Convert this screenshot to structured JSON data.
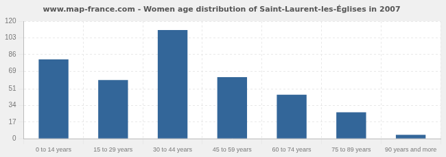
{
  "chart_data": {
    "type": "bar",
    "title": "www.map-france.com - Women age distribution of Saint-Laurent-les-Églises in 2007",
    "categories": [
      "0 to 14 years",
      "15 to 29 years",
      "30 to 44 years",
      "45 to 59 years",
      "60 to 74 years",
      "75 to 89 years",
      "90 years and more"
    ],
    "values": [
      81,
      60,
      111,
      63,
      45,
      27,
      4
    ],
    "color": "#336699",
    "ylim": [
      0,
      120
    ],
    "yticks": [
      0,
      17,
      34,
      51,
      69,
      86,
      103,
      120
    ],
    "grid": true
  }
}
